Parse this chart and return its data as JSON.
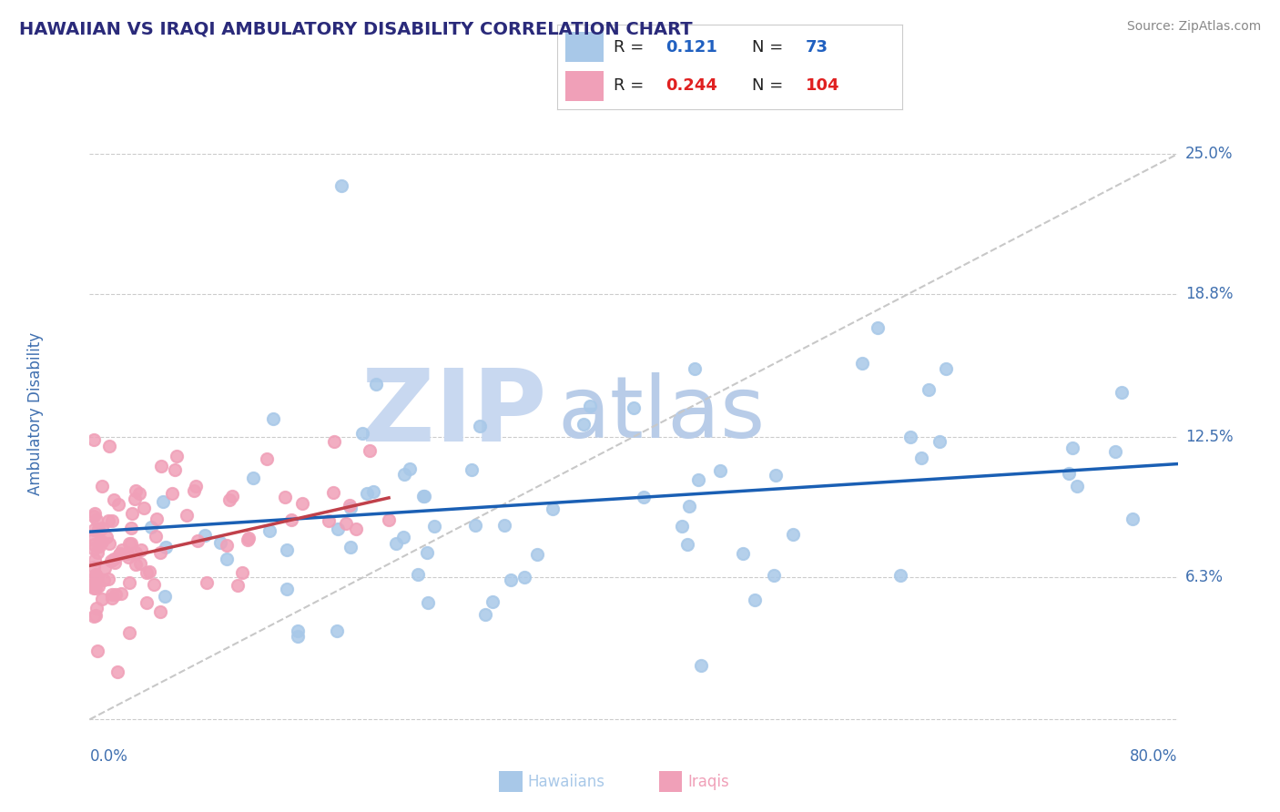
{
  "title": "HAWAIIAN VS IRAQI AMBULATORY DISABILITY CORRELATION CHART",
  "source": "Source: ZipAtlas.com",
  "ylabel": "Ambulatory Disability",
  "ytick_vals": [
    0.0,
    0.063,
    0.125,
    0.188,
    0.25
  ],
  "ytick_labels": [
    "",
    "6.3%",
    "12.5%",
    "18.8%",
    "25.0%"
  ],
  "xmin": 0.0,
  "xmax": 0.8,
  "ymin": -0.005,
  "ymax": 0.275,
  "hawaiian_R": 0.121,
  "hawaiian_N": 73,
  "iraqi_R": 0.244,
  "iraqi_N": 104,
  "hawaiian_dot_color": "#a8c8e8",
  "iraqi_dot_color": "#f0a0b8",
  "hawaiian_line_color": "#1a5fb4",
  "iraqi_line_color": "#c0404a",
  "ref_line_color": "#c8c8c8",
  "title_color": "#2a2a7a",
  "watermark_zip_color": "#c8d8f0",
  "watermark_atlas_color": "#b8cce8",
  "bg_color": "#ffffff",
  "legend_label_color": "#222222",
  "legend_haw_val_color": "#2060c0",
  "legend_irq_val_color": "#e02020",
  "bottom_haw_label": "Hawaiians",
  "bottom_irq_label": "Iraqis",
  "source_color": "#888888",
  "axis_label_color": "#4070b0",
  "grid_color": "#cccccc",
  "hawaiian_trendline_start_x": 0.0,
  "hawaiian_trendline_start_y": 0.083,
  "hawaiian_trendline_end_x": 0.8,
  "hawaiian_trendline_end_y": 0.113,
  "iraqi_trendline_start_x": 0.0,
  "iraqi_trendline_start_y": 0.068,
  "iraqi_trendline_end_x": 0.22,
  "iraqi_trendline_end_y": 0.098
}
